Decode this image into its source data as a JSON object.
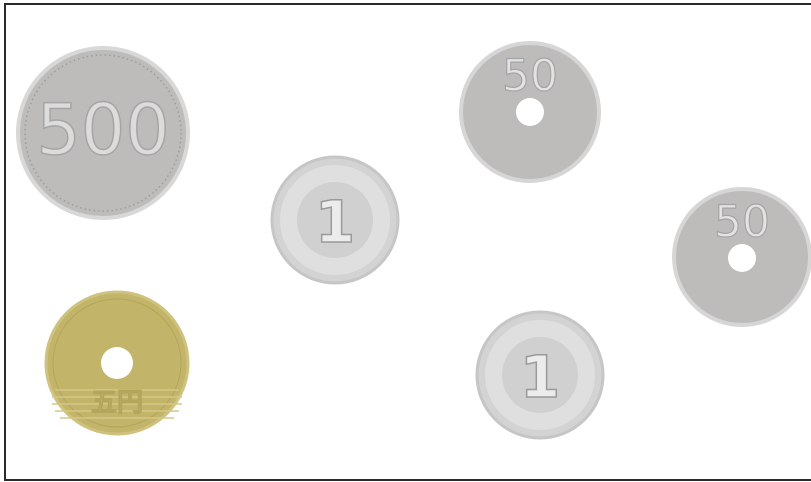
{
  "coins": [
    {
      "label": "500"
    },
    {
      "label": "1"
    },
    {
      "label": "50"
    },
    {
      "label": "50"
    },
    {
      "label": "五円"
    },
    {
      "label": "1"
    }
  ]
}
